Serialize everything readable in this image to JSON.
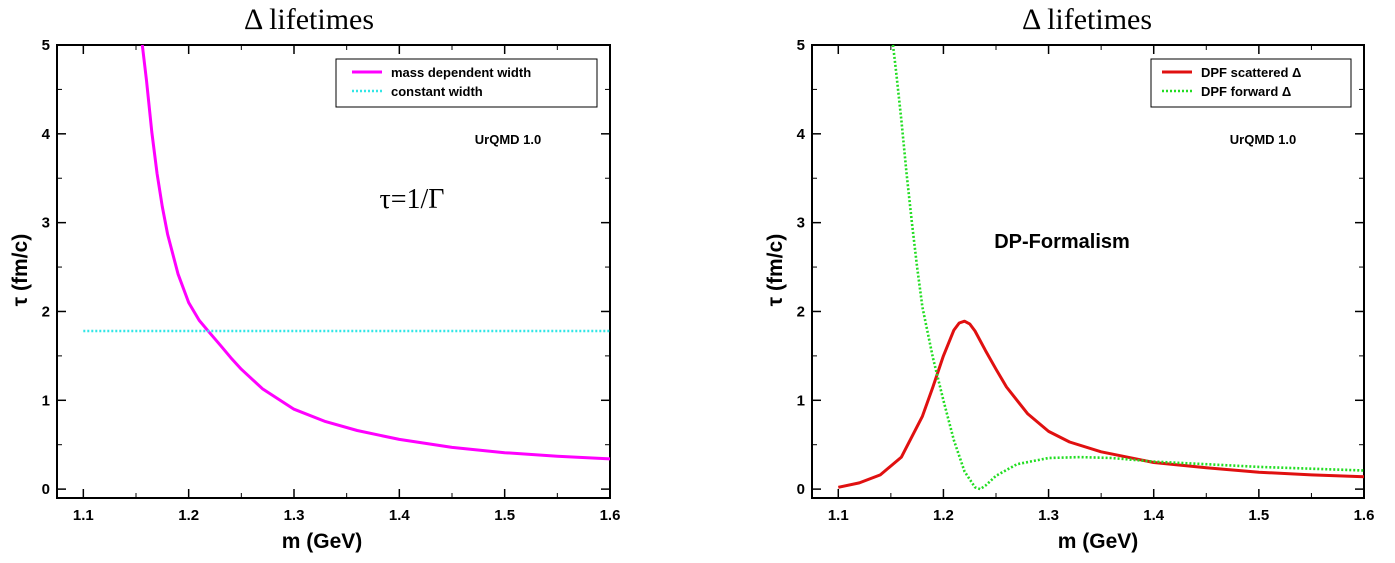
{
  "chart_data": [
    {
      "type": "line",
      "title": "Δ lifetimes",
      "xlabel": "m (GeV)",
      "ylabel": "τ (fm/c)",
      "xlim": [
        1.075,
        1.6
      ],
      "ylim": [
        -0.1,
        5
      ],
      "xticks": [
        "1.1",
        "1.2",
        "1.3",
        "1.4",
        "1.5",
        "1.6"
      ],
      "yticks": [
        "0",
        "1",
        "2",
        "3",
        "4",
        "5"
      ],
      "grid": false,
      "legend_position": "top-right",
      "annotations": [
        "UrQMD 1.0",
        "τ=1/Γ"
      ],
      "series": [
        {
          "name": "mass dependent width",
          "color": "#ff00ff",
          "style": "solid",
          "x": [
            1.156,
            1.16,
            1.165,
            1.17,
            1.175,
            1.18,
            1.19,
            1.2,
            1.21,
            1.22,
            1.23,
            1.24,
            1.25,
            1.27,
            1.3,
            1.33,
            1.36,
            1.4,
            1.45,
            1.5,
            1.55,
            1.6
          ],
          "y": [
            5.0,
            4.6,
            4.02,
            3.55,
            3.18,
            2.87,
            2.42,
            2.1,
            1.9,
            1.76,
            1.62,
            1.48,
            1.35,
            1.13,
            0.9,
            0.76,
            0.66,
            0.56,
            0.47,
            0.41,
            0.37,
            0.34
          ]
        },
        {
          "name": "constant width",
          "color": "#33e6e6",
          "style": "dotted",
          "x": [
            1.1,
            1.6
          ],
          "y": [
            1.78,
            1.78
          ]
        }
      ]
    },
    {
      "type": "line",
      "title": "Δ lifetimes",
      "xlabel": "m (GeV)",
      "ylabel": "τ (fm/c)",
      "xlim": [
        1.075,
        1.6
      ],
      "ylim": [
        -0.1,
        5
      ],
      "xticks": [
        "1.1",
        "1.2",
        "1.3",
        "1.4",
        "1.5",
        "1.6"
      ],
      "yticks": [
        "0",
        "1",
        "2",
        "3",
        "4",
        "5"
      ],
      "grid": false,
      "legend_position": "top-right",
      "annotations": [
        "UrQMD 1.0",
        "DP-Formalism"
      ],
      "series": [
        {
          "name": "DPF scattered Δ",
          "color": "#e01010",
          "style": "solid",
          "x": [
            1.1,
            1.12,
            1.14,
            1.16,
            1.18,
            1.19,
            1.2,
            1.21,
            1.215,
            1.22,
            1.225,
            1.23,
            1.24,
            1.25,
            1.26,
            1.28,
            1.3,
            1.32,
            1.35,
            1.4,
            1.45,
            1.5,
            1.55,
            1.6
          ],
          "y": [
            0.02,
            0.07,
            0.16,
            0.36,
            0.82,
            1.15,
            1.5,
            1.79,
            1.87,
            1.89,
            1.86,
            1.78,
            1.56,
            1.35,
            1.15,
            0.85,
            0.65,
            0.53,
            0.42,
            0.3,
            0.24,
            0.19,
            0.16,
            0.14
          ]
        },
        {
          "name": "DPF forward Δ",
          "color": "#22dd22",
          "style": "dotted",
          "x": [
            1.152,
            1.155,
            1.16,
            1.165,
            1.17,
            1.175,
            1.18,
            1.19,
            1.2,
            1.21,
            1.22,
            1.23,
            1.235,
            1.24,
            1.25,
            1.27,
            1.3,
            1.33,
            1.36,
            1.4,
            1.45,
            1.5,
            1.55,
            1.6
          ],
          "y": [
            5.0,
            4.7,
            4.15,
            3.55,
            3.0,
            2.5,
            2.05,
            1.48,
            1.0,
            0.55,
            0.2,
            0.02,
            0.0,
            0.04,
            0.15,
            0.28,
            0.35,
            0.36,
            0.35,
            0.31,
            0.28,
            0.25,
            0.23,
            0.21
          ]
        }
      ]
    }
  ]
}
